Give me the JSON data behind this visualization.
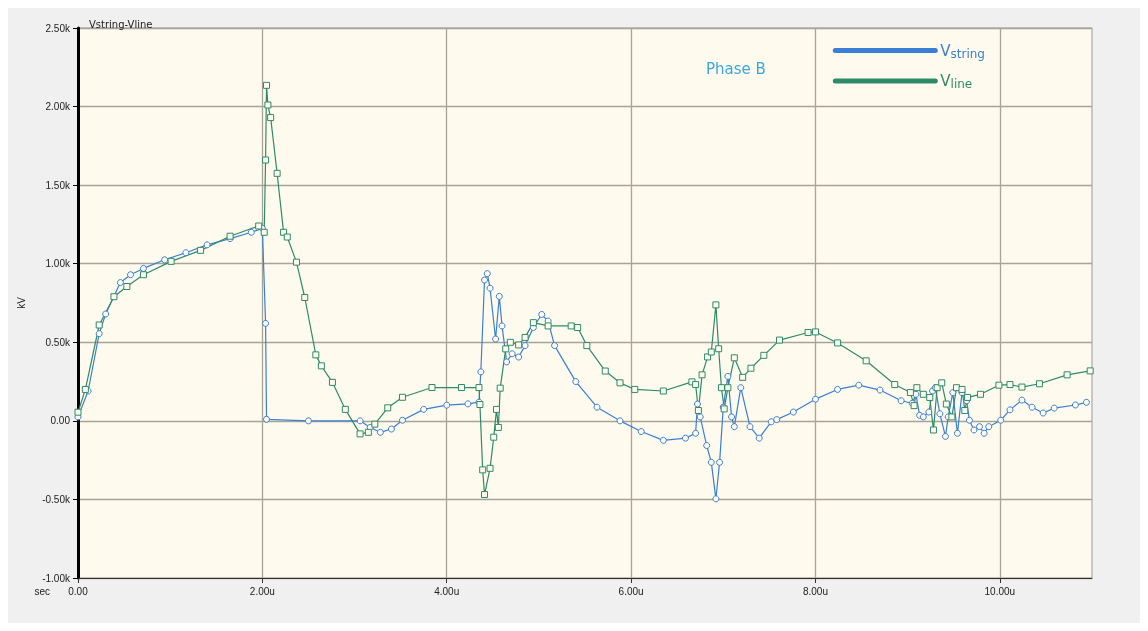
{
  "chart_data": {
    "type": "line",
    "title": "Vstring-Vline",
    "xlabel": "sec",
    "ylabel": "kV",
    "annotations": [
      "Phase B"
    ],
    "xlim": [
      0,
      11
    ],
    "xticks": [
      {
        "value": 0,
        "label": "0.00"
      },
      {
        "value": 2,
        "label": "2.00u"
      },
      {
        "value": 4,
        "label": "4.00u"
      },
      {
        "value": 6,
        "label": "6.00u"
      },
      {
        "value": 8,
        "label": "8.00u"
      },
      {
        "value": 10,
        "label": "10.00u"
      }
    ],
    "ylim": [
      -1000,
      2500
    ],
    "yticks": [
      {
        "value": -1000,
        "label": "-1.00k"
      },
      {
        "value": -500,
        "label": "-0.50k"
      },
      {
        "value": 0,
        "label": "0.00"
      },
      {
        "value": 500,
        "label": "0.50k"
      },
      {
        "value": 1000,
        "label": "1.00k"
      },
      {
        "value": 1500,
        "label": "1.50k"
      },
      {
        "value": 2000,
        "label": "2.00k"
      },
      {
        "value": 2500,
        "label": "2.50k"
      }
    ],
    "grid": true,
    "legend": "top right",
    "line_style": "solid",
    "series": [
      {
        "name": "V$_{string}$",
        "color": "#3a7fd5",
        "marker": "circle",
        "x": [
          0,
          0.11,
          0.23,
          0.3,
          0.46,
          0.57,
          0.71,
          0.94,
          1.17,
          1.4,
          1.65,
          1.88,
          2,
          2.035,
          2.045,
          2.5,
          3.06,
          3.17,
          3.28,
          3.4,
          3.52,
          3.75,
          4,
          4.23,
          4.35,
          4.37,
          4.41,
          4.44,
          4.47,
          4.53,
          4.57,
          4.6,
          4.65,
          4.71,
          4.78,
          4.85,
          4.94,
          5.03,
          5.1,
          5.17,
          5.4,
          5.63,
          5.88,
          6.11,
          6.35,
          6.59,
          6.7,
          6.72,
          6.75,
          6.82,
          6.87,
          6.92,
          6.96,
          7,
          7.05,
          7.09,
          7.12,
          7.19,
          7.29,
          7.39,
          7.52,
          7.58,
          7.76,
          8,
          8.24,
          8.47,
          8.7,
          8.93,
          9.05,
          9.09,
          9.13,
          9.17,
          9.23,
          9.27,
          9.3,
          9.35,
          9.41,
          9.44,
          9.49,
          9.54,
          9.59,
          9.64,
          9.67,
          9.72,
          9.78,
          9.83,
          9.88,
          10.01,
          10.11,
          10.24,
          10.35,
          10.47,
          10.59,
          10.82,
          10.94
        ],
        "values": [
          25,
          190,
          555,
          680,
          880,
          930,
          970,
          1025,
          1070,
          1120,
          1160,
          1200,
          1225,
          620,
          10,
          0,
          0,
          -42,
          -73,
          -52,
          4,
          73,
          100,
          108,
          119,
          312,
          896,
          937,
          844,
          521,
          792,
          604,
          375,
          427,
          406,
          479,
          594,
          677,
          635,
          479,
          250,
          87,
          0,
          -68,
          -124,
          -110,
          -79,
          107,
          25,
          -157,
          -264,
          -496,
          -264,
          87,
          283,
          25,
          -37,
          211,
          -37,
          -110,
          -6,
          8,
          56,
          138,
          200,
          227,
          196,
          128,
          112,
          169,
          35,
          25,
          56,
          190,
          211,
          45,
          -99,
          25,
          180,
          -79,
          180,
          128,
          4,
          -58,
          -37,
          -79,
          -37,
          4,
          70,
          132,
          87,
          50,
          81,
          101,
          118
        ]
      },
      {
        "name": "V$_{line}$",
        "color": "#2e8b6a",
        "marker": "square",
        "x": [
          0,
          0.08,
          0.23,
          0.39,
          0.53,
          0.71,
          1.01,
          1.33,
          1.65,
          1.96,
          2.02,
          2.035,
          2.045,
          2.06,
          2.09,
          2.16,
          2.23,
          2.27,
          2.37,
          2.46,
          2.58,
          2.64,
          2.76,
          2.9,
          3.06,
          3.15,
          3.22,
          3.36,
          3.52,
          3.84,
          4.16,
          4.35,
          4.36,
          4.39,
          4.41,
          4.47,
          4.51,
          4.54,
          4.56,
          4.58,
          4.64,
          4.69,
          4.78,
          4.85,
          4.94,
          5.1,
          5.35,
          5.42,
          5.52,
          5.72,
          5.88,
          6.04,
          6.35,
          6.66,
          6.7,
          6.73,
          6.77,
          6.83,
          6.87,
          6.92,
          6.95,
          6.98,
          7.01,
          7.05,
          7.12,
          7.21,
          7.3,
          7.44,
          7.61,
          7.92,
          8,
          8.24,
          8.55,
          8.86,
          9.03,
          9.07,
          9.1,
          9.17,
          9.24,
          9.28,
          9.32,
          9.37,
          9.42,
          9.48,
          9.53,
          9.59,
          9.62,
          9.65,
          9.79,
          9.99,
          10.11,
          10.24,
          10.43,
          10.73,
          10.98
        ],
        "values": [
          55,
          200,
          610,
          790,
          855,
          930,
          1015,
          1085,
          1175,
          1240,
          1200,
          1660,
          2135,
          2010,
          1930,
          1575,
          1200,
          1170,
          1010,
          785,
          420,
          350,
          245,
          73,
          -83,
          -73,
          -21,
          83,
          150,
          212,
          212,
          212,
          104,
          -312,
          -469,
          -302,
          -104,
          73,
          -42,
          208,
          458,
          500,
          483,
          531,
          625,
          604,
          604,
          594,
          479,
          317,
          242,
          200,
          190,
          248,
          231,
          66,
          293,
          407,
          438,
          738,
          459,
          211,
          76,
          211,
          401,
          277,
          335,
          417,
          514,
          562,
          566,
          496,
          382,
          231,
          180,
          97,
          211,
          169,
          149,
          -58,
          211,
          242,
          107,
          25,
          211,
          200,
          66,
          149,
          169,
          227,
          231,
          215,
          236,
          293,
          318
        ]
      }
    ]
  }
}
